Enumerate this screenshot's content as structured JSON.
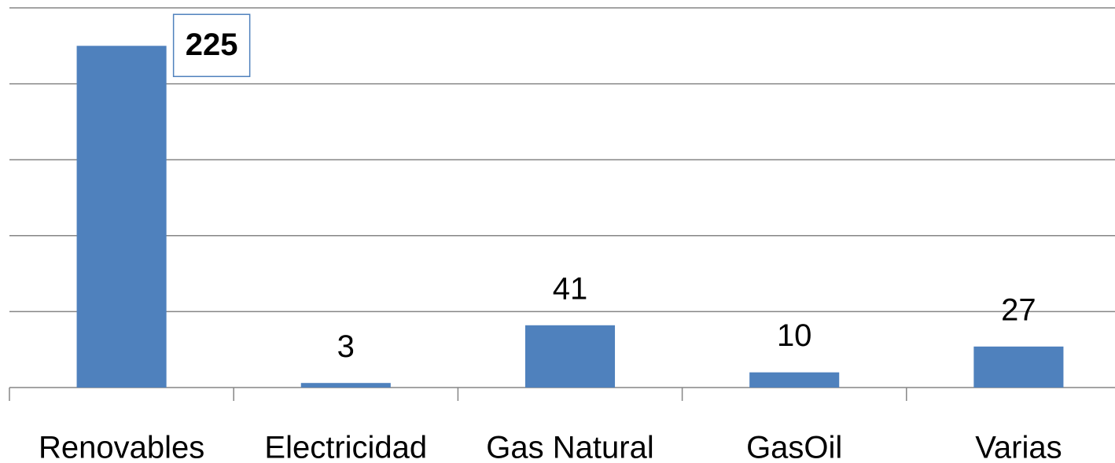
{
  "chart_data": {
    "type": "bar",
    "categories": [
      "Renovables",
      "Electricidad",
      "Gas Natural",
      "GasOil",
      "Varias"
    ],
    "values": [
      225,
      3,
      41,
      10,
      27
    ],
    "color": "#4f81bd",
    "ylim": [
      0,
      250
    ],
    "yticks": [
      0,
      50,
      100,
      150,
      200,
      250
    ],
    "grid": true
  }
}
